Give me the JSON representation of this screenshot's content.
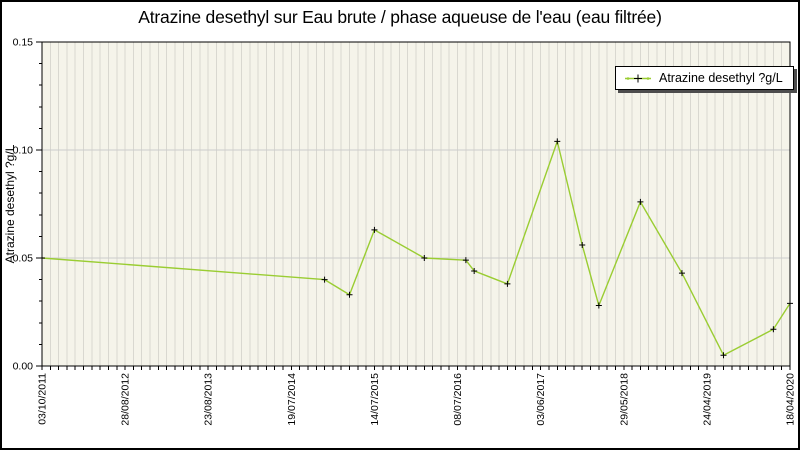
{
  "title": "Atrazine desethyl sur Eau brute / phase aqueuse de l'eau (eau filtrée)",
  "legend": {
    "label": "Atrazine desethyl ?g/L"
  },
  "colors": {
    "line": "#9acd32",
    "marker": "#000000",
    "plot_background": "#f5f4ea",
    "vertical_grid": "#d9d8d0",
    "horizontal_grid": "#cccccc",
    "axis": "#000000",
    "text": "#000000",
    "background": "#ffffff",
    "legend_border": "#000000",
    "legend_shadow": "#4d4d4d"
  },
  "chart_data": {
    "type": "line",
    "title": "Atrazine desethyl sur Eau brute / phase aqueuse de l'eau (eau filtrée)",
    "xlabel": "",
    "ylabel": "Atrazine desethyl ?g/L",
    "ylim": [
      0,
      0.15
    ],
    "grid": true,
    "legend_position": "top-right",
    "y_ticks": [
      {
        "value": 0.0,
        "label": "0.00"
      },
      {
        "value": 0.05,
        "label": "0.05"
      },
      {
        "value": 0.1,
        "label": "0.10"
      },
      {
        "value": 0.15,
        "label": "0.15"
      }
    ],
    "y_minor_tick_step": 0.01,
    "x_index_range": [
      0,
      90
    ],
    "x_minor_tick_step": 1,
    "x_ticks": [
      {
        "pos": 0,
        "label": "03/10/2011"
      },
      {
        "pos": 10,
        "label": "28/08/2012"
      },
      {
        "pos": 20,
        "label": "23/08/2013"
      },
      {
        "pos": 30,
        "label": "19/07/2014"
      },
      {
        "pos": 40,
        "label": "14/07/2015"
      },
      {
        "pos": 50,
        "label": "08/07/2016"
      },
      {
        "pos": 60,
        "label": "03/06/2017"
      },
      {
        "pos": 70,
        "label": "29/05/2018"
      },
      {
        "pos": 80,
        "label": "24/04/2019"
      },
      {
        "pos": 90,
        "label": "18/04/2020"
      }
    ],
    "series": [
      {
        "name": "Atrazine desethyl ?g/L",
        "color": "#9acd32",
        "marker": "plus",
        "points": [
          {
            "x": 0,
            "value": 0.05
          },
          {
            "x": 34,
            "value": 0.04
          },
          {
            "x": 37,
            "value": 0.033
          },
          {
            "x": 40,
            "value": 0.063
          },
          {
            "x": 46,
            "value": 0.05
          },
          {
            "x": 51,
            "value": 0.049
          },
          {
            "x": 52,
            "value": 0.044
          },
          {
            "x": 56,
            "value": 0.038
          },
          {
            "x": 62,
            "value": 0.104
          },
          {
            "x": 65,
            "value": 0.056
          },
          {
            "x": 67,
            "value": 0.028
          },
          {
            "x": 72,
            "value": 0.076
          },
          {
            "x": 77,
            "value": 0.043
          },
          {
            "x": 82,
            "value": 0.005
          },
          {
            "x": 88,
            "value": 0.017
          },
          {
            "x": 90,
            "value": 0.029
          }
        ]
      }
    ]
  }
}
